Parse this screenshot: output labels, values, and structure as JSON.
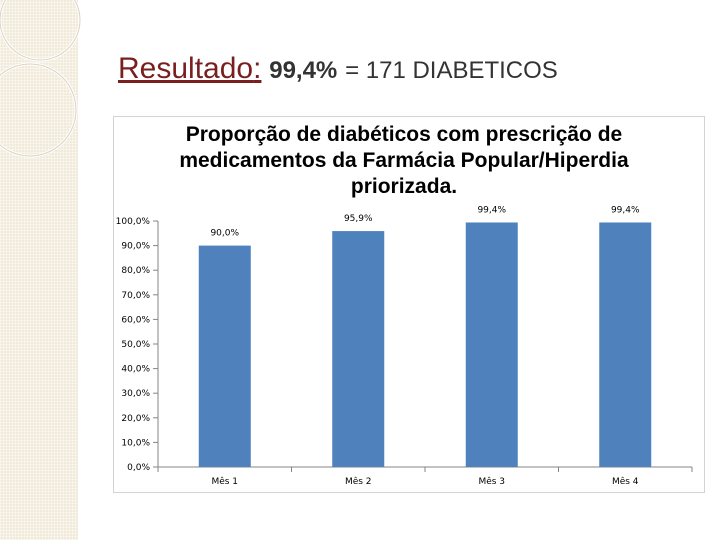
{
  "slide": {
    "title_lead": "Resultado",
    "title_colon": ":",
    "title_strong": "99,4%",
    "title_rest": "= 171 DIABETICOS"
  },
  "chart_data": {
    "type": "bar",
    "title": "Proporção de diabéticos com prescrição de medicamentos da Farmácia Popular/Hiperdia priorizada.",
    "categories": [
      "Mês 1",
      "Mês 2",
      "Mês 3",
      "Mês 4"
    ],
    "values": [
      90.0,
      95.9,
      99.4,
      99.4
    ],
    "value_labels": [
      "90,0%",
      "95,9%",
      "99,4%",
      "99,4%"
    ],
    "ylim": [
      0,
      100
    ],
    "yticks": [
      "0,0%",
      "10,0%",
      "20,0%",
      "30,0%",
      "40,0%",
      "50,0%",
      "60,0%",
      "70,0%",
      "80,0%",
      "90,0%",
      "100,0%"
    ],
    "bar_color": "#4f81bd",
    "grid": false,
    "legend": false
  }
}
